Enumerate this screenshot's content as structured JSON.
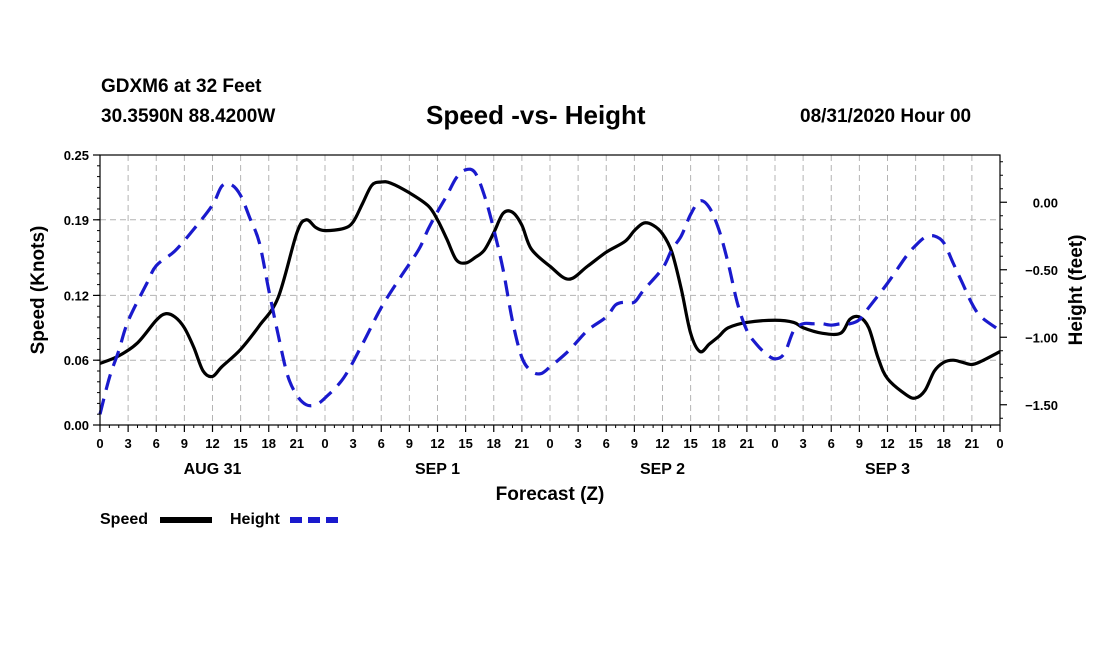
{
  "header": {
    "station": "GDXM6 at 32 Feet",
    "coords": "30.3590N 88.4200W",
    "title": "Speed -vs- Height",
    "datestamp": "08/31/2020 Hour 00"
  },
  "colors": {
    "speed": "#000000",
    "height": "#1a1acd",
    "grid": "#b4b4b4"
  },
  "chart_data": {
    "type": "line",
    "title": "Speed -vs- Height",
    "xlabel": "Forecast (Z)",
    "ylabel": "Speed (Knots)",
    "ylabel_right": "Height (feet)",
    "x_unit": "hours from 08/31/2020 00Z",
    "xlim": [
      0,
      96
    ],
    "ylim": [
      0,
      0.25
    ],
    "ylim_right": [
      -1.65,
      0.35
    ],
    "grid": true,
    "x_ticks": [
      0,
      3,
      6,
      9,
      12,
      15,
      18,
      21,
      24,
      27,
      30,
      33,
      36,
      39,
      42,
      45,
      48,
      51,
      54,
      57,
      60,
      63,
      66,
      69,
      72,
      75,
      78,
      81,
      84,
      87,
      90,
      93,
      96
    ],
    "x_tick_labels": [
      "0",
      "3",
      "6",
      "9",
      "12",
      "15",
      "18",
      "21",
      "0",
      "3",
      "6",
      "9",
      "12",
      "15",
      "18",
      "21",
      "0",
      "3",
      "6",
      "9",
      "12",
      "15",
      "18",
      "21",
      "0",
      "3",
      "6",
      "9",
      "12",
      "15",
      "18",
      "21",
      "0"
    ],
    "y_ticks": [
      0.0,
      0.06,
      0.12,
      0.19,
      0.25
    ],
    "y_tick_labels": [
      "0.00",
      "0.06",
      "0.12",
      "0.19",
      "0.25"
    ],
    "y_ticks_right": [
      0.0,
      -0.5,
      -1.0,
      -1.5
    ],
    "y_tick_labels_right": [
      "0.00",
      "−0.50",
      "−1.00",
      "−1.50"
    ],
    "day_labels": [
      {
        "x": 12,
        "label": "AUG 31"
      },
      {
        "x": 36,
        "label": "SEP 1"
      },
      {
        "x": 60,
        "label": "SEP 2"
      },
      {
        "x": 84,
        "label": "SEP 3"
      }
    ],
    "series": [
      {
        "name": "Speed",
        "axis": "left",
        "style": "solid",
        "points": [
          [
            0,
            0.057
          ],
          [
            2,
            0.064
          ],
          [
            4,
            0.076
          ],
          [
            6,
            0.097
          ],
          [
            7,
            0.103
          ],
          [
            8,
            0.1
          ],
          [
            9,
            0.09
          ],
          [
            10,
            0.072
          ],
          [
            11,
            0.05
          ],
          [
            12,
            0.045
          ],
          [
            13,
            0.054
          ],
          [
            15,
            0.07
          ],
          [
            17,
            0.092
          ],
          [
            19,
            0.118
          ],
          [
            21,
            0.178
          ],
          [
            22,
            0.19
          ],
          [
            23,
            0.183
          ],
          [
            24,
            0.18
          ],
          [
            26,
            0.182
          ],
          [
            27,
            0.188
          ],
          [
            28,
            0.205
          ],
          [
            29,
            0.222
          ],
          [
            30,
            0.225
          ],
          [
            31,
            0.224
          ],
          [
            33,
            0.215
          ],
          [
            35,
            0.203
          ],
          [
            36,
            0.19
          ],
          [
            37,
            0.172
          ],
          [
            38,
            0.153
          ],
          [
            39,
            0.15
          ],
          [
            40,
            0.155
          ],
          [
            41,
            0.162
          ],
          [
            42,
            0.178
          ],
          [
            43,
            0.196
          ],
          [
            44,
            0.197
          ],
          [
            45,
            0.185
          ],
          [
            46,
            0.163
          ],
          [
            48,
            0.147
          ],
          [
            50,
            0.135
          ],
          [
            52,
            0.147
          ],
          [
            54,
            0.16
          ],
          [
            56,
            0.17
          ],
          [
            57,
            0.18
          ],
          [
            58,
            0.187
          ],
          [
            59,
            0.185
          ],
          [
            60,
            0.177
          ],
          [
            61,
            0.16
          ],
          [
            62,
            0.126
          ],
          [
            63,
            0.085
          ],
          [
            64,
            0.068
          ],
          [
            65,
            0.075
          ],
          [
            66,
            0.082
          ],
          [
            67,
            0.09
          ],
          [
            69,
            0.095
          ],
          [
            72,
            0.097
          ],
          [
            74,
            0.095
          ],
          [
            75,
            0.09
          ],
          [
            77,
            0.085
          ],
          [
            79,
            0.085
          ],
          [
            80,
            0.098
          ],
          [
            81,
            0.1
          ],
          [
            82,
            0.09
          ],
          [
            83,
            0.062
          ],
          [
            84,
            0.043
          ],
          [
            86,
            0.028
          ],
          [
            87,
            0.025
          ],
          [
            88,
            0.032
          ],
          [
            89,
            0.05
          ],
          [
            90,
            0.058
          ],
          [
            91,
            0.06
          ],
          [
            92,
            0.058
          ],
          [
            93,
            0.056
          ],
          [
            94,
            0.059
          ],
          [
            96,
            0.068
          ]
        ]
      },
      {
        "name": "Height",
        "axis": "right",
        "style": "dashed",
        "points": [
          [
            0,
            -1.57
          ],
          [
            1,
            -1.3
          ],
          [
            2,
            -1.1
          ],
          [
            3,
            -0.88
          ],
          [
            5,
            -0.6
          ],
          [
            6,
            -0.47
          ],
          [
            8,
            -0.36
          ],
          [
            10,
            -0.2
          ],
          [
            12,
            -0.02
          ],
          [
            13,
            0.12
          ],
          [
            14,
            0.13
          ],
          [
            15,
            0.05
          ],
          [
            16,
            -0.12
          ],
          [
            17,
            -0.3
          ],
          [
            18,
            -0.65
          ],
          [
            19,
            -0.98
          ],
          [
            20,
            -1.28
          ],
          [
            21,
            -1.43
          ],
          [
            22,
            -1.5
          ],
          [
            23,
            -1.5
          ],
          [
            24,
            -1.45
          ],
          [
            26,
            -1.3
          ],
          [
            28,
            -1.05
          ],
          [
            30,
            -0.78
          ],
          [
            32,
            -0.56
          ],
          [
            34,
            -0.35
          ],
          [
            35,
            -0.2
          ],
          [
            36,
            -0.07
          ],
          [
            37,
            0.05
          ],
          [
            38,
            0.18
          ],
          [
            39,
            0.24
          ],
          [
            40,
            0.22
          ],
          [
            41,
            0.05
          ],
          [
            42,
            -0.2
          ],
          [
            43,
            -0.5
          ],
          [
            44,
            -0.88
          ],
          [
            45,
            -1.15
          ],
          [
            46,
            -1.25
          ],
          [
            47,
            -1.27
          ],
          [
            48,
            -1.22
          ],
          [
            50,
            -1.1
          ],
          [
            52,
            -0.95
          ],
          [
            54,
            -0.85
          ],
          [
            55,
            -0.76
          ],
          [
            56,
            -0.74
          ],
          [
            57,
            -0.74
          ],
          [
            58,
            -0.65
          ],
          [
            60,
            -0.49
          ],
          [
            61,
            -0.35
          ],
          [
            62,
            -0.25
          ],
          [
            63,
            -0.09
          ],
          [
            64,
            0.01
          ],
          [
            65,
            -0.04
          ],
          [
            66,
            -0.2
          ],
          [
            67,
            -0.45
          ],
          [
            68,
            -0.75
          ],
          [
            69,
            -0.95
          ],
          [
            70,
            -1.05
          ],
          [
            71,
            -1.12
          ],
          [
            72,
            -1.16
          ],
          [
            73,
            -1.12
          ],
          [
            74,
            -0.95
          ],
          [
            75,
            -0.9
          ],
          [
            76,
            -0.9
          ],
          [
            77,
            -0.9
          ],
          [
            78,
            -0.91
          ],
          [
            79,
            -0.9
          ],
          [
            80,
            -0.9
          ],
          [
            81,
            -0.87
          ],
          [
            82,
            -0.78
          ],
          [
            84,
            -0.6
          ],
          [
            86,
            -0.4
          ],
          [
            87,
            -0.32
          ],
          [
            88,
            -0.26
          ],
          [
            89,
            -0.25
          ],
          [
            90,
            -0.3
          ],
          [
            91,
            -0.45
          ],
          [
            92,
            -0.6
          ],
          [
            93,
            -0.75
          ],
          [
            94,
            -0.85
          ],
          [
            96,
            -0.95
          ]
        ]
      }
    ],
    "legend": [
      {
        "name": "Speed",
        "style": "solid"
      },
      {
        "name": "Height",
        "style": "dashed"
      }
    ],
    "legend_position": "bottom-left"
  }
}
